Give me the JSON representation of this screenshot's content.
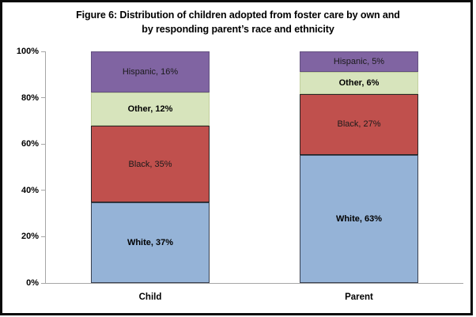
{
  "title": {
    "line1": "Figure 6: Distribution of children adopted from foster care by own and",
    "line2": "by responding parent’s race and ethnicity"
  },
  "chart_data": {
    "type": "bar",
    "subtype": "stacked-100",
    "title": "Figure 6: Distribution of children adopted from foster care by own and by responding parent’s race and ethnicity",
    "categories": [
      "Child",
      "Parent"
    ],
    "series_order": "top-to-bottom",
    "series": [
      {
        "name": "Hispanic",
        "values": [
          16,
          5
        ],
        "color": "#8064A2",
        "border_color": "#63507f",
        "label_bold": false,
        "data_labels": [
          "Hispanic, 16%",
          "Hispanic, 5%"
        ]
      },
      {
        "name": "Other",
        "values": [
          12,
          6
        ],
        "color": "#D7E4BC",
        "border_color": "#c2cf9e",
        "label_bold": true,
        "data_labels": [
          "Other, 12%",
          "Other, 6%"
        ]
      },
      {
        "name": "Black",
        "values": [
          35,
          27
        ],
        "color": "#C0504D",
        "border_color": "#262626",
        "label_bold": false,
        "data_labels": [
          "Black, 35%",
          "Black, 27%"
        ]
      },
      {
        "name": "White",
        "values": [
          37,
          63
        ],
        "color": "#95B3D7",
        "border_color": "#39404f",
        "label_bold": true,
        "data_labels": [
          "White, 37%",
          "White, 63%"
        ]
      }
    ],
    "y_axis": {
      "min": 0,
      "max": 100,
      "ticks": [
        "0%",
        "20%",
        "40%",
        "60%",
        "80%",
        "100%"
      ]
    },
    "x_axis_labels": [
      "Child",
      "Parent"
    ],
    "grid": false,
    "legend": "none",
    "axis_color": "#a6a6a6",
    "frame_color": "#0a0a0a"
  }
}
